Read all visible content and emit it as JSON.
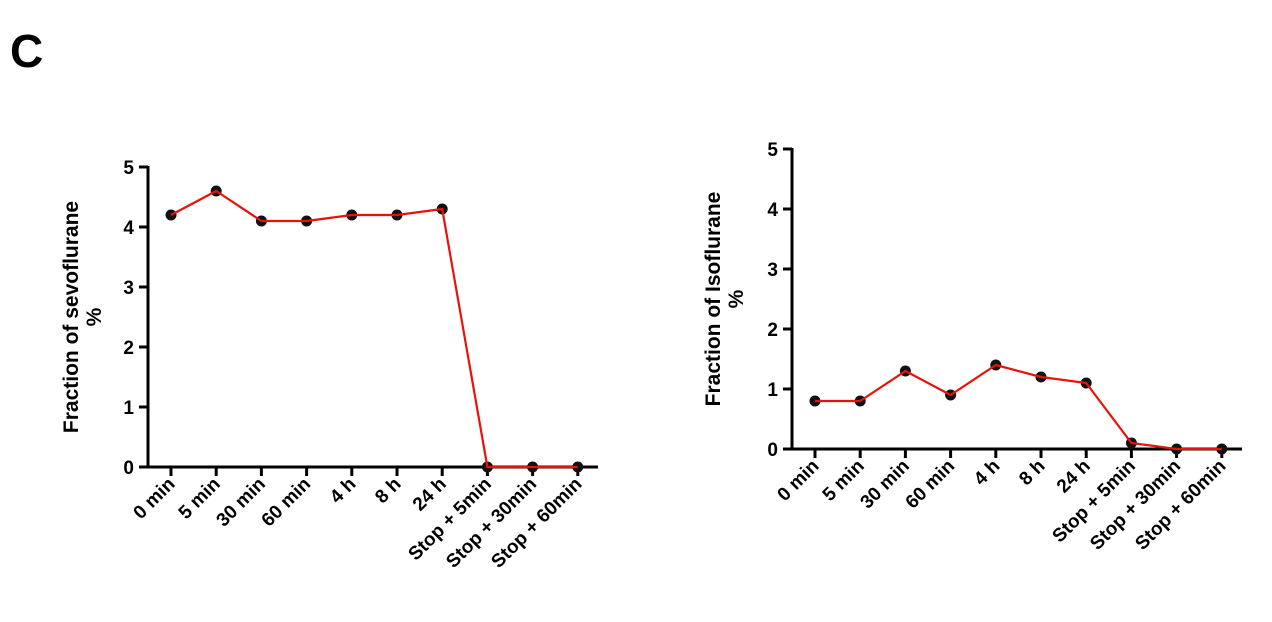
{
  "panel_label": "C",
  "chart_data": [
    {
      "type": "line",
      "ylabel_line1": "Fraction of sevoflurane",
      "ylabel_line2": "%",
      "categories": [
        "0 min",
        "5 min",
        "30 min",
        "60 min",
        "4 h",
        "8 h",
        "24 h",
        "Stop + 5min",
        "Stop + 30min",
        "Stop +  60min"
      ],
      "values": [
        4.2,
        4.6,
        4.1,
        4.1,
        4.2,
        4.2,
        4.3,
        0,
        0,
        0
      ],
      "ylim": [
        0,
        5
      ],
      "yticks": [
        0,
        1,
        2,
        3,
        4,
        5
      ],
      "grid": false,
      "line_color": "#e8120c",
      "marker_color": "#111111"
    },
    {
      "type": "line",
      "ylabel_line1": "Fraction of Isoflurane",
      "ylabel_line2": "%",
      "categories": [
        "0 min",
        "5 min",
        "30 min",
        "60 min",
        "4 h",
        "8 h",
        "24 h",
        "Stop + 5min",
        "Stop + 30min",
        "Stop + 60min"
      ],
      "values": [
        0.8,
        0.8,
        1.3,
        0.9,
        1.4,
        1.2,
        1.1,
        0.1,
        0,
        0
      ],
      "ylim": [
        0,
        5
      ],
      "yticks": [
        0,
        1,
        2,
        3,
        4,
        5
      ],
      "grid": false,
      "line_color": "#e8120c",
      "marker_color": "#111111"
    }
  ]
}
